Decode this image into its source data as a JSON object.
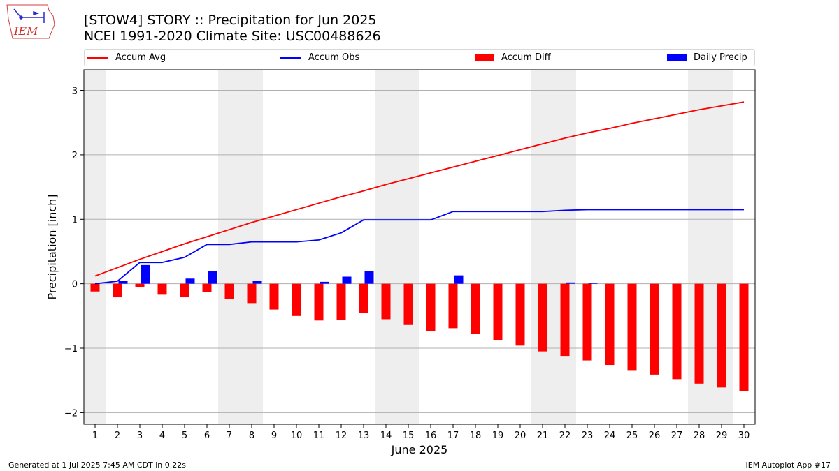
{
  "header": {
    "title_line1": "[STOW4] STORY :: Precipitation for Jun 2025",
    "title_line2": "NCEI 1991-2020 Climate Site: USC00488626"
  },
  "logo": {
    "text": "IEM"
  },
  "footer": {
    "left": "Generated at 1 Jul 2025 7:45 AM CDT in 0.22s",
    "right": "IEM Autoplot App #17"
  },
  "colors": {
    "avg": "#ff0000",
    "obs": "#0000ff",
    "diff": "#ff0000",
    "daily": "#0000ff",
    "weekend_shade": "#eeeeee",
    "grid": "#b0b0b0"
  },
  "chart_data": {
    "type": "bar",
    "xlabel": "June 2025",
    "ylabel": "Precipitation [inch]",
    "ylim": [
      -2.18,
      3.32
    ],
    "yticks": [
      -2,
      -1,
      0,
      1,
      2,
      3
    ],
    "ytick_labels": [
      "−2",
      "−1",
      "0",
      "1",
      "2",
      "3"
    ],
    "grid": "horizontal",
    "legend_position": "top",
    "days": [
      "1",
      "2",
      "3",
      "4",
      "5",
      "6",
      "7",
      "8",
      "9",
      "10",
      "11",
      "12",
      "13",
      "14",
      "15",
      "16",
      "17",
      "18",
      "19",
      "20",
      "21",
      "22",
      "23",
      "24",
      "25",
      "26",
      "27",
      "28",
      "29",
      "30"
    ],
    "weekend_shading": [
      [
        1,
        1
      ],
      [
        7,
        8
      ],
      [
        14,
        15
      ],
      [
        21,
        22
      ],
      [
        28,
        29
      ]
    ],
    "series": [
      {
        "name": "Accum Avg",
        "type": "line",
        "values": [
          0.12,
          0.25,
          0.38,
          0.5,
          0.62,
          0.73,
          0.84,
          0.95,
          1.05,
          1.15,
          1.25,
          1.35,
          1.44,
          1.54,
          1.63,
          1.72,
          1.81,
          1.9,
          1.99,
          2.08,
          2.17,
          2.26,
          2.34,
          2.41,
          2.49,
          2.56,
          2.63,
          2.7,
          2.76,
          2.82
        ]
      },
      {
        "name": "Accum Obs",
        "type": "line",
        "values": [
          0.0,
          0.04,
          0.33,
          0.33,
          0.41,
          0.61,
          0.61,
          0.65,
          0.65,
          0.65,
          0.68,
          0.79,
          0.99,
          0.99,
          0.99,
          0.99,
          1.12,
          1.12,
          1.12,
          1.12,
          1.12,
          1.14,
          1.15,
          1.15,
          1.15,
          1.15,
          1.15,
          1.15,
          1.15,
          1.15
        ]
      },
      {
        "name": "Accum Diff",
        "type": "bar",
        "values": [
          -0.12,
          -0.21,
          -0.05,
          -0.17,
          -0.21,
          -0.13,
          -0.24,
          -0.3,
          -0.4,
          -0.5,
          -0.57,
          -0.56,
          -0.45,
          -0.55,
          -0.64,
          -0.73,
          -0.69,
          -0.78,
          -0.87,
          -0.96,
          -1.05,
          -1.12,
          -1.19,
          -1.26,
          -1.34,
          -1.41,
          -1.48,
          -1.55,
          -1.61,
          -1.67
        ]
      },
      {
        "name": "Daily Precip",
        "type": "bar",
        "values": [
          0.0,
          0.04,
          0.29,
          0.0,
          0.08,
          0.2,
          0.0,
          0.05,
          0.0,
          0.0,
          0.03,
          0.11,
          0.2,
          0.0,
          0.0,
          0.0,
          0.13,
          0.0,
          0.0,
          0.0,
          0.0,
          0.02,
          0.01,
          0.0,
          0.0,
          0.0,
          0.0,
          0.0,
          0.0,
          0.0
        ]
      }
    ]
  }
}
